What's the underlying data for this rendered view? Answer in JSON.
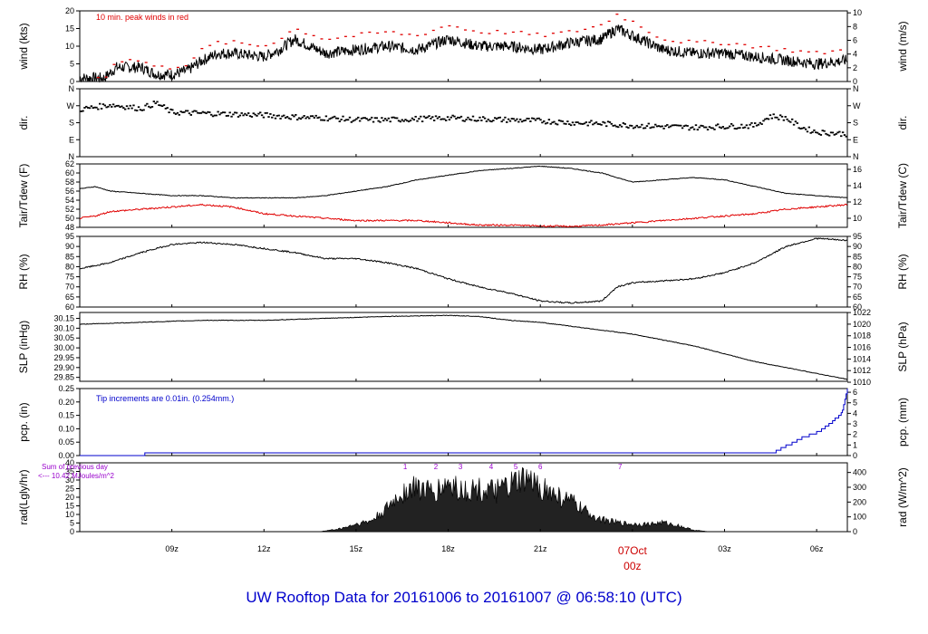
{
  "title": "UW Rooftop Data for 20161006  to  20161007 @ 06:58:10  (UTC)",
  "colors": {
    "trace": "#000000",
    "peak": "#e00000",
    "dew": "#e00000",
    "precip": "#0000cc",
    "note": "#0000cc",
    "rad_note": "#9900cc",
    "date_label": "#cc0000"
  },
  "x_axis": {
    "start_hour": 6.0,
    "end_hour": 31.0,
    "ticks": [
      {
        "hour": 9,
        "label": "09z"
      },
      {
        "hour": 12,
        "label": "12z"
      },
      {
        "hour": 15,
        "label": "15z"
      },
      {
        "hour": 18,
        "label": "18z"
      },
      {
        "hour": 21,
        "label": "21z"
      },
      {
        "hour": 24,
        "label": "00z"
      },
      {
        "hour": 27,
        "label": "03z"
      },
      {
        "hour": 30,
        "label": "06z"
      }
    ],
    "date_label": "07Oct",
    "date_hour": 24
  },
  "chart_data": [
    {
      "type": "line",
      "name": "wind",
      "ylabel_left": "wind (kts)",
      "ylabel_right": "wind (m/s)",
      "note": "10 min. peak winds in red",
      "left_ylim": [
        0,
        20
      ],
      "left_ticks": [
        0,
        5,
        10,
        15,
        20
      ],
      "right_ticks": [
        0,
        2,
        4,
        6,
        8,
        10
      ],
      "right_scale": 0.5144,
      "x": [
        6,
        6.8,
        7.2,
        8,
        8.5,
        9,
        9.5,
        10,
        10.5,
        11,
        12,
        12.5,
        13,
        14,
        15,
        16,
        17,
        18,
        19,
        20,
        21,
        22,
        23,
        23.5,
        24,
        25,
        26,
        27,
        28,
        29,
        30,
        31
      ],
      "series": [
        {
          "name": "wind speed",
          "values": [
            1,
            1,
            4,
            4,
            2,
            2,
            3,
            6,
            8,
            8,
            7,
            9,
            12,
            8,
            9,
            10,
            9,
            12,
            10,
            10,
            9,
            11,
            12,
            15,
            13,
            9,
            8,
            8,
            7,
            6,
            5,
            6
          ]
        },
        {
          "name": "10 min. peak",
          "values": [
            1,
            1,
            6,
            6,
            4,
            4,
            5,
            9,
            11,
            11,
            10,
            12,
            15,
            12,
            13,
            14,
            13,
            16,
            14,
            14,
            13,
            14,
            16,
            19,
            17,
            12,
            11,
            11,
            10,
            9,
            8,
            9
          ]
        }
      ]
    },
    {
      "type": "scatter",
      "name": "dir",
      "ylabel_left": "dir.",
      "ylabel_right": "dir.",
      "left_ticks": [
        "N",
        "W",
        "S",
        "E",
        "N"
      ],
      "right_ticks": [
        "N",
        "W",
        "S",
        "E",
        "N"
      ],
      "ylim": [
        360,
        0
      ],
      "tick_values": [
        360,
        270,
        180,
        90,
        0
      ],
      "x": [
        6,
        7,
        7.5,
        8,
        8.5,
        9,
        10,
        11,
        12,
        13,
        14,
        15,
        16,
        17,
        18,
        19,
        20,
        21,
        22,
        23,
        24,
        25,
        26,
        27,
        28,
        28.5,
        29,
        29.5,
        30,
        31
      ],
      "values": [
        250,
        275,
        265,
        255,
        285,
        235,
        230,
        225,
        220,
        210,
        205,
        195,
        195,
        200,
        205,
        200,
        195,
        190,
        180,
        175,
        165,
        160,
        155,
        160,
        165,
        215,
        205,
        155,
        130,
        120
      ]
    },
    {
      "type": "line",
      "name": "temperature",
      "ylabel_left": "Tair/Tdew (F)",
      "ylabel_right": "Tair/Tdew (C)",
      "left_ylim": [
        48,
        62
      ],
      "left_ticks": [
        48,
        50,
        52,
        54,
        56,
        58,
        60,
        62
      ],
      "right_ticks": [
        10,
        12,
        14,
        16
      ],
      "x": [
        6,
        6.5,
        7,
        8,
        9,
        10,
        11,
        12,
        13,
        14,
        15,
        16,
        17,
        18,
        19,
        20,
        21,
        22,
        23,
        24,
        25,
        26,
        27,
        28,
        29,
        30,
        31
      ],
      "series": [
        {
          "name": "Tair",
          "values": [
            56.5,
            57,
            56,
            55.5,
            55,
            55,
            54.5,
            54.5,
            54.5,
            55,
            56,
            57,
            58.5,
            59.5,
            60.5,
            61,
            61.5,
            61,
            60,
            58,
            58.5,
            59,
            58.5,
            57,
            55.5,
            55,
            54.5
          ]
        },
        {
          "name": "Tdew",
          "values": [
            50,
            50.5,
            51.5,
            52,
            52.5,
            53,
            52.5,
            51,
            50.5,
            50,
            49.5,
            49.5,
            49.5,
            49,
            48.5,
            48.5,
            48.3,
            48.2,
            48.5,
            49,
            49.5,
            50,
            50.5,
            51,
            52,
            52.5,
            53
          ]
        }
      ]
    },
    {
      "type": "line",
      "name": "rh",
      "ylabel_left": "RH (%)",
      "ylabel_right": "RH (%)",
      "left_ylim": [
        60,
        95
      ],
      "left_ticks": [
        60,
        65,
        70,
        75,
        80,
        85,
        90,
        95
      ],
      "right_ticks": [
        60,
        65,
        70,
        75,
        80,
        85,
        90,
        95
      ],
      "x": [
        6,
        7,
        8,
        9,
        10,
        11,
        12,
        13,
        14,
        15,
        16,
        17,
        18,
        19,
        20,
        21,
        22,
        23,
        23.5,
        24,
        25,
        26,
        27,
        28,
        29,
        30,
        31
      ],
      "values": [
        79,
        82,
        87,
        91,
        92,
        91,
        89,
        87,
        84,
        84,
        82,
        79,
        74,
        70,
        67,
        63,
        62,
        63,
        70,
        72,
        73,
        74,
        77,
        82,
        90,
        94,
        93
      ]
    },
    {
      "type": "line",
      "name": "slp",
      "ylabel_left": "SLP (inHg)",
      "ylabel_right": "SLP (hPa)",
      "left_ylim": [
        29.83,
        30.18
      ],
      "left_ticks": [
        "29.85",
        "29.90",
        "29.95",
        "30.00",
        "30.05",
        "30.10",
        "30.15"
      ],
      "right_ticks": [
        "1010",
        "1012",
        "1014",
        "1016",
        "1018",
        "1020",
        "1022"
      ],
      "right_hpa_per_inhg": 33.8639,
      "x": [
        6,
        8,
        10,
        12,
        14,
        16,
        18,
        19,
        20,
        21,
        22,
        23,
        24,
        25,
        26,
        27,
        28,
        29,
        30,
        31
      ],
      "values": [
        30.12,
        30.13,
        30.14,
        30.14,
        30.15,
        30.16,
        30.165,
        30.16,
        30.14,
        30.13,
        30.11,
        30.09,
        30.07,
        30.04,
        30.01,
        29.97,
        29.93,
        29.9,
        29.87,
        29.84
      ]
    },
    {
      "type": "line",
      "name": "precip",
      "ylabel_left": "pcp. (in)",
      "ylabel_right": "pcp. (mm)",
      "note": "Tip increments are 0.01in. (0.254mm.)",
      "left_ylim": [
        0,
        0.25
      ],
      "left_ticks": [
        "0.00",
        "0.05",
        "0.10",
        "0.15",
        "0.20",
        "0.25"
      ],
      "right_ticks": [
        0,
        1,
        2,
        3,
        4,
        5,
        6
      ],
      "x": [
        6,
        8,
        8.1,
        28.5,
        29,
        29.5,
        30,
        30.5,
        30.8,
        31
      ],
      "values": [
        0,
        0,
        0.01,
        0.01,
        0.04,
        0.07,
        0.09,
        0.13,
        0.16,
        0.25
      ]
    },
    {
      "type": "area",
      "name": "radiation",
      "ylabel_left": "rad(Lgly/hr)",
      "ylabel_right": "rad (W/m^2)",
      "note_lines": [
        "Sum of previous day",
        "<--- 10.42 MJoules/m^2"
      ],
      "left_ylim": [
        0,
        40
      ],
      "left_ticks": [
        0,
        5,
        10,
        15,
        20,
        25,
        30,
        35,
        40
      ],
      "right_ticks": [
        0,
        100,
        200,
        300,
        400
      ],
      "right_wm2_per_lgly": 11.63,
      "hour_marks": [
        {
          "hour": 16.6,
          "label": "1"
        },
        {
          "hour": 17.6,
          "label": "2"
        },
        {
          "hour": 18.4,
          "label": "3"
        },
        {
          "hour": 19.4,
          "label": "4"
        },
        {
          "hour": 20.2,
          "label": "5"
        },
        {
          "hour": 21.0,
          "label": "6"
        },
        {
          "hour": 23.6,
          "label": "7"
        }
      ],
      "x": [
        13.8,
        14.5,
        15,
        15.5,
        16,
        16.5,
        17,
        17.5,
        18,
        18.5,
        19,
        19.5,
        20,
        20.5,
        21,
        21.5,
        22,
        22.5,
        23,
        23.5,
        24,
        24.5,
        25,
        25.5,
        26,
        26.5,
        27
      ],
      "values": [
        0,
        2,
        5,
        7,
        15,
        26,
        30,
        25,
        32,
        27,
        28,
        26,
        30,
        34,
        30,
        24,
        20,
        13,
        8,
        6,
        5,
        5,
        6,
        4,
        1,
        0,
        0
      ]
    }
  ]
}
